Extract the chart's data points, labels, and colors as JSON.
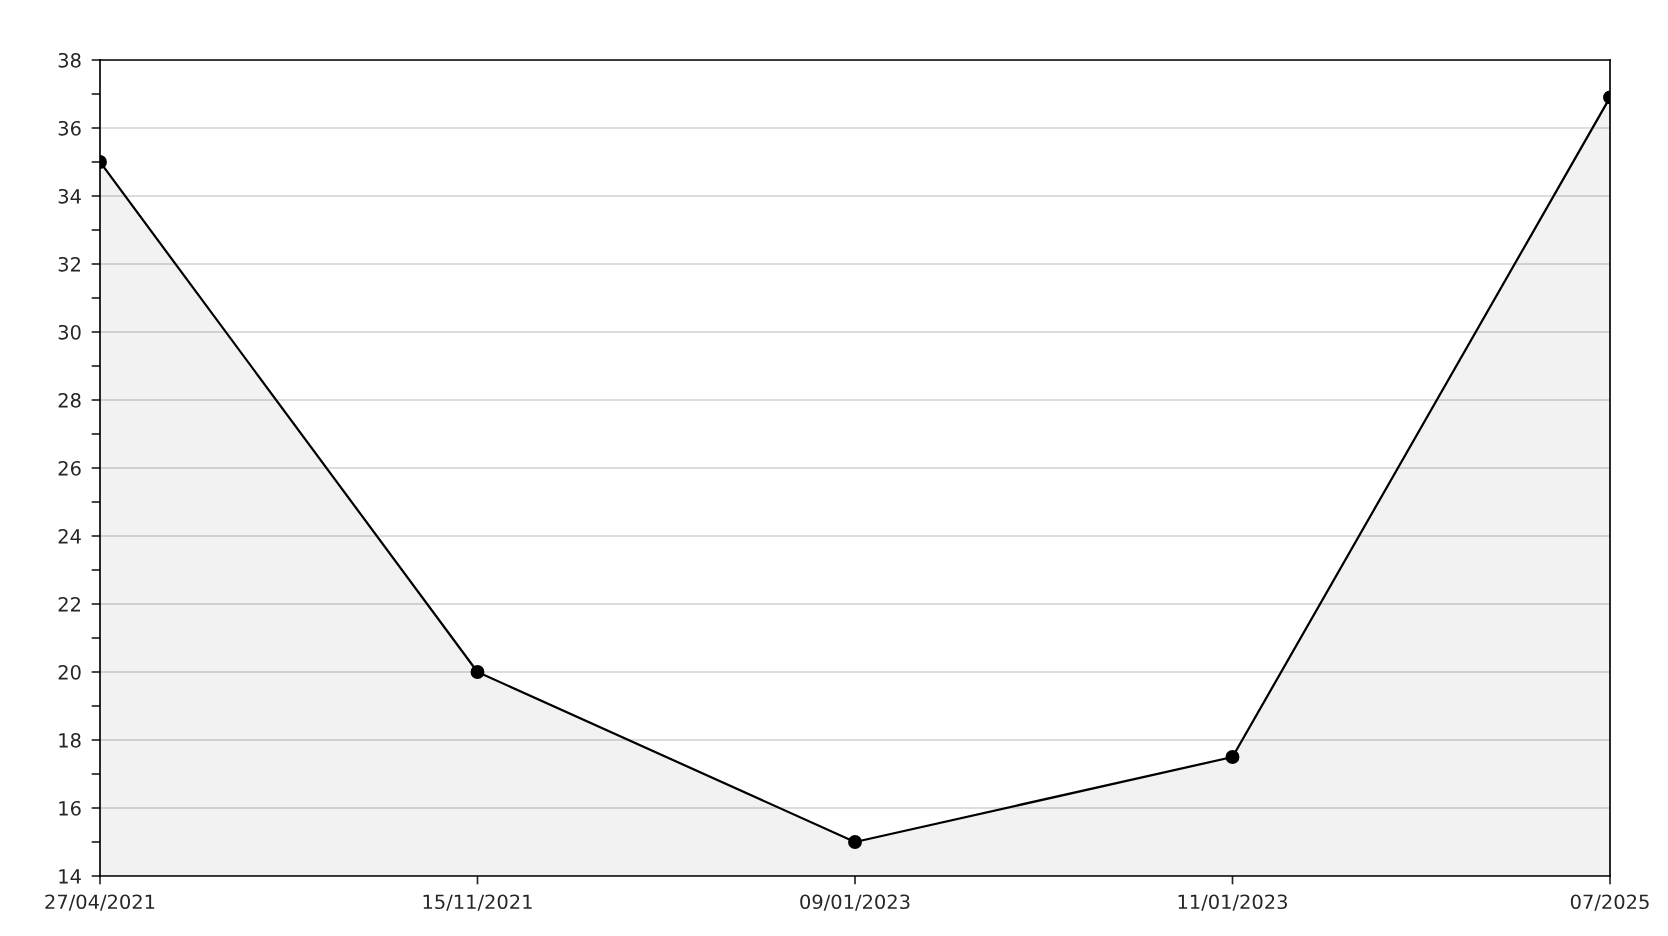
{
  "chart_data": {
    "type": "area",
    "categories": [
      "27/04/2021",
      "15/11/2021",
      "09/01/2023",
      "11/01/2023",
      "07/2025"
    ],
    "series": [
      {
        "color": "#000000",
        "values": [
          35,
          20,
          15,
          17.5,
          36.9
        ]
      }
    ],
    "ylim": [
      14,
      38
    ],
    "yticks": [
      14,
      {
        "value": 15,
        "label": null
      },
      16,
      {
        "value": 17,
        "label": null
      },
      18,
      {
        "value": 19,
        "label": null
      },
      20,
      {
        "value": 21,
        "label": null
      },
      22,
      {
        "value": 23,
        "label": null
      },
      24,
      {
        "value": 25,
        "label": null
      },
      26,
      {
        "value": 27,
        "label": null
      },
      28,
      {
        "value": 29,
        "label": null
      },
      30,
      {
        "value": 31,
        "label": null
      },
      32,
      {
        "value": 33,
        "label": null
      },
      34,
      {
        "value": 35,
        "label": null
      },
      36,
      {
        "value": 37,
        "label": null
      },
      38
    ],
    "grid": "y",
    "marker": "circle",
    "line_style": "solid",
    "legend": false
  }
}
